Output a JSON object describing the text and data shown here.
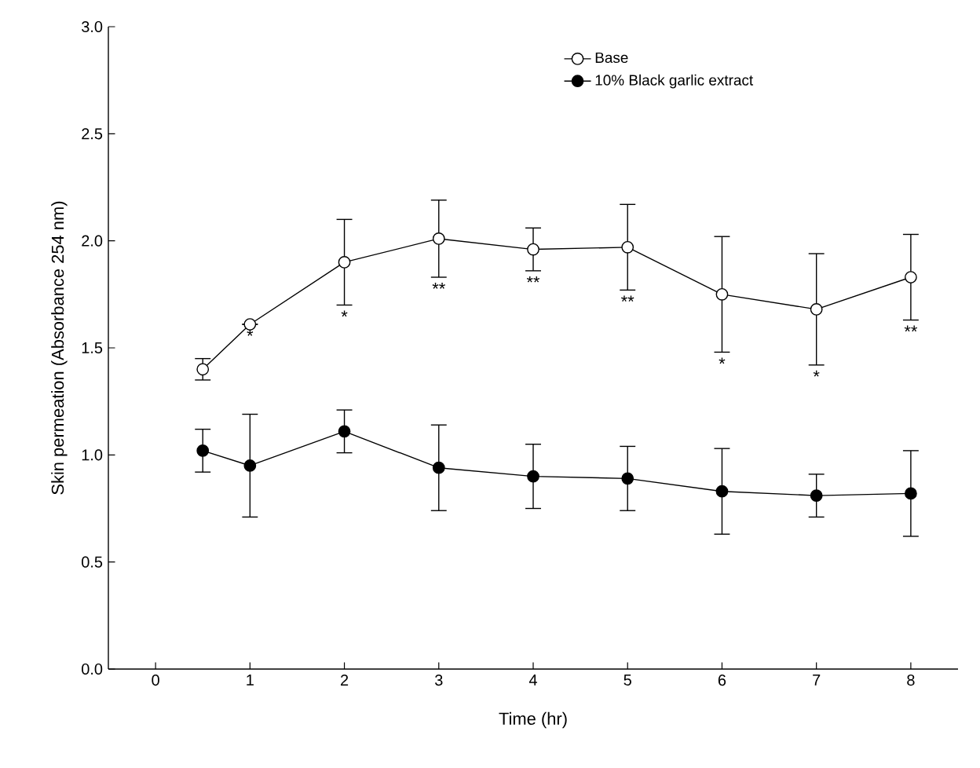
{
  "chart_data": {
    "type": "line",
    "xlabel": "Time (hr)",
    "ylabel": "Skin permeation (Absorbance 254 nm)",
    "xlim": [
      -0.5,
      8.5
    ],
    "ylim": [
      0,
      3
    ],
    "xticks": [
      0,
      1,
      2,
      3,
      4,
      5,
      6,
      7,
      8
    ],
    "yticks": [
      {
        "value": 0,
        "label": "0.0"
      },
      {
        "value": 0.5,
        "label": "0.5"
      },
      {
        "value": 1,
        "label": "1.0"
      },
      {
        "value": 1.5,
        "label": "1.5"
      },
      {
        "value": 2,
        "label": "2.0"
      },
      {
        "value": 2.5,
        "label": "2.5"
      },
      {
        "value": 3,
        "label": "3.0"
      }
    ],
    "x": [
      0.5,
      1,
      2,
      3,
      4,
      5,
      6,
      7,
      8
    ],
    "series": [
      {
        "name": "Base",
        "color": "#ffffff",
        "values": [
          1.4,
          1.61,
          1.9,
          2.01,
          1.96,
          1.97,
          1.75,
          1.68,
          1.83
        ],
        "errors": [
          0.05,
          null,
          0.2,
          0.18,
          0.1,
          0.2,
          0.27,
          0.26,
          0.2
        ]
      },
      {
        "name": "10% Black garlic extract",
        "color": "#000000",
        "values": [
          1.02,
          0.95,
          1.11,
          0.94,
          0.9,
          0.89,
          0.83,
          0.81,
          0.82
        ],
        "errors": [
          0.1,
          0.24,
          0.1,
          0.2,
          0.15,
          0.15,
          0.2,
          0.1,
          0.2
        ]
      }
    ],
    "annotations": [
      "*",
      "*",
      "**",
      "**",
      "**",
      "*",
      "*",
      "**"
    ],
    "marker": "circle",
    "line_style": "solid",
    "legend": "top right",
    "grid": false
  }
}
